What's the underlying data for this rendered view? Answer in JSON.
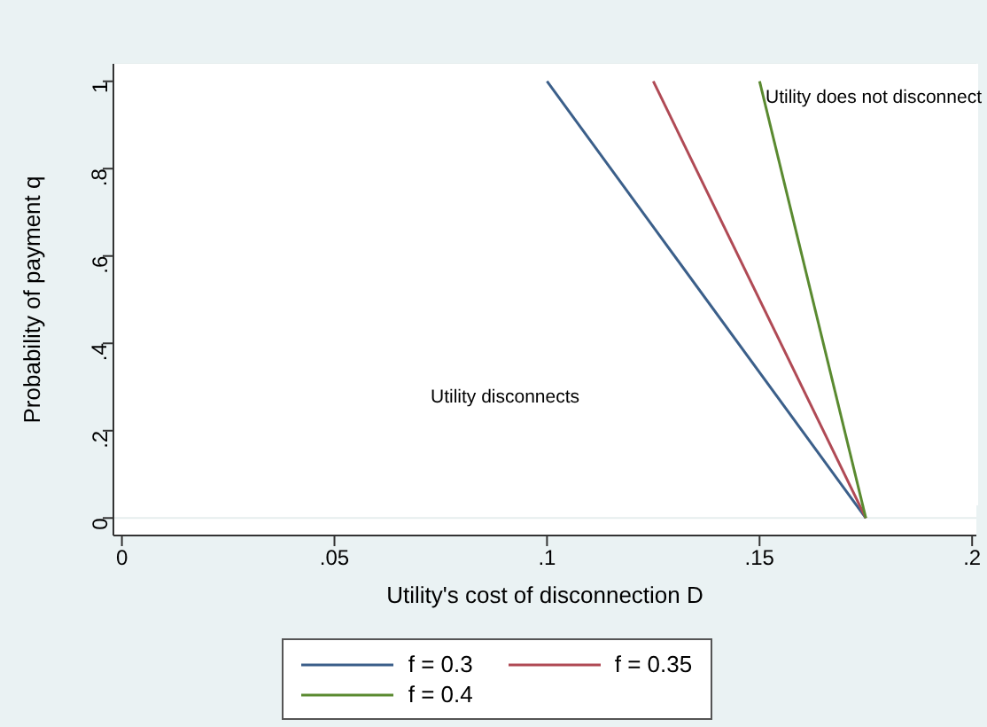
{
  "chart_data": {
    "type": "line",
    "xlabel": "Utility's cost of disconnection D",
    "ylabel": "Probability of payment q",
    "series": [
      {
        "name": "f = 0.3",
        "color": "#3b5f8a",
        "x": [
          0.1,
          0.175
        ],
        "values": [
          1,
          0
        ]
      },
      {
        "name": "f = 0.35",
        "color": "#b04a55",
        "x": [
          0.125,
          0.175
        ],
        "values": [
          1,
          0
        ]
      },
      {
        "name": "f = 0.4",
        "color": "#5a8a30",
        "x": [
          0.15,
          0.175
        ],
        "values": [
          1,
          0
        ]
      }
    ],
    "xlim": [
      -0.002,
      0.201
    ],
    "ylim": [
      -0.04,
      1.04
    ],
    "xticks": [
      0,
      {
        "value": 0.05,
        "label": ".05"
      },
      {
        "value": 0.1,
        "label": ".1"
      },
      {
        "value": 0.15,
        "label": ".15"
      },
      {
        "value": 0.2,
        "label": ".2"
      }
    ],
    "yticks": [
      0,
      {
        "value": 0.2,
        "label": ".2"
      },
      {
        "value": 0.4,
        "label": ".4"
      },
      {
        "value": 0.6,
        "label": ".6"
      },
      {
        "value": 0.8,
        "label": ".8"
      },
      1
    ],
    "annotations": [
      "Utility disconnects",
      "Utility does not disconnect"
    ],
    "grid": "y",
    "legend": "bottom",
    "marker": "none",
    "line_style": "solid"
  }
}
